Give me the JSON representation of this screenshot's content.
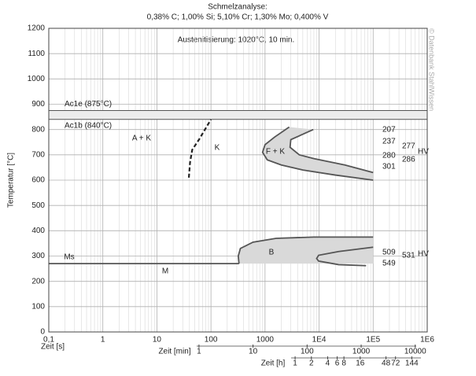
{
  "chart_data": {
    "type": "line",
    "title": "Schmelzanalyse:",
    "subtitle": "0,38% C; 1,00% Si; 5,10% Cr; 1,30% Mo; 0,400% V",
    "annotation": "Austenitisierung: 1020°C, 10 min.",
    "watermark": "© Datenbank StahlWissen",
    "ylabel": "Temperatur [°C]",
    "xlabel": "Zeit [s]",
    "xlabel_min": "Zeit [min]",
    "xlabel_h": "Zeit [h]",
    "log_x": true,
    "grid": true,
    "xlim": [
      0.1,
      1000000
    ],
    "ylim": [
      0,
      1200
    ],
    "xticks": [
      {
        "value": 0.1,
        "label": "0,1"
      },
      1,
      10,
      100,
      1000,
      {
        "value": 10000,
        "label": "1E4"
      },
      {
        "value": 100000,
        "label": "1E5"
      },
      {
        "value": 1000000,
        "label": "1E6"
      }
    ],
    "xticks_min": [
      {
        "value": 60,
        "label": "1"
      },
      {
        "value": 600,
        "label": "10"
      },
      {
        "value": 6000,
        "label": "100"
      },
      {
        "value": 60000,
        "label": "1000"
      },
      {
        "value": 600000,
        "label": "10000"
      }
    ],
    "xticks_h": [
      {
        "value": 3600,
        "label": "1"
      },
      {
        "value": 7200,
        "label": "2"
      },
      {
        "value": 14400,
        "label": "4"
      },
      {
        "value": 21600,
        "label": "6"
      },
      {
        "value": 28800,
        "label": "8"
      },
      {
        "value": 57600,
        "label": "16"
      },
      {
        "value": 172800,
        "label": "48"
      },
      {
        "value": 259200,
        "label": "72"
      },
      {
        "value": 518400,
        "label": "144"
      }
    ],
    "yticks": [
      0,
      100,
      200,
      300,
      400,
      500,
      600,
      700,
      800,
      900,
      1000,
      1100,
      1200
    ],
    "ref_lines": [
      {
        "value": 875,
        "label": "Ac1e (875°C)"
      },
      {
        "value": 840,
        "label": "Ac1b (840°C)"
      }
    ],
    "curves": [
      {
        "x": [
          39,
          41,
          45,
          60,
          100
        ],
        "y": [
          610,
          670,
          720,
          760,
          840
        ],
        "dashed": true,
        "color": "#222222"
      },
      {
        "x": [
          2800,
          1500,
          1000,
          900,
          1100,
          2000,
          5000,
          20000,
          100000
        ],
        "y": [
          810,
          770,
          740,
          710,
          680,
          660,
          640,
          620,
          600
        ],
        "color": "#555555"
      },
      {
        "x": [
          7800,
          3000,
          2900,
          4300,
          8000,
          30000,
          100000
        ],
        "y": [
          800,
          760,
          730,
          700,
          685,
          660,
          630
        ],
        "color": "#555555"
      },
      {
        "x": [
          330,
          320,
          350,
          600,
          1600,
          8000,
          100000
        ],
        "y": [
          270,
          300,
          330,
          355,
          370,
          375,
          375
        ],
        "color": "#555555"
      },
      {
        "x": [
          100000,
          23000,
          9800,
          9000,
          9800,
          23000,
          74000
        ],
        "y": [
          335,
          318,
          303,
          290,
          280,
          266,
          262
        ],
        "color": "#555555"
      },
      {
        "x": [
          0.1,
          330
        ],
        "y": [
          270,
          270
        ],
        "color": "#555555"
      }
    ],
    "regions": [
      "A + K",
      "K",
      "F + K",
      "B",
      "M",
      "Ms"
    ],
    "hardness": [
      "207",
      "237",
      "280",
      "301",
      "277",
      "286",
      "HV",
      "509",
      "549",
      "531",
      "HV"
    ]
  }
}
